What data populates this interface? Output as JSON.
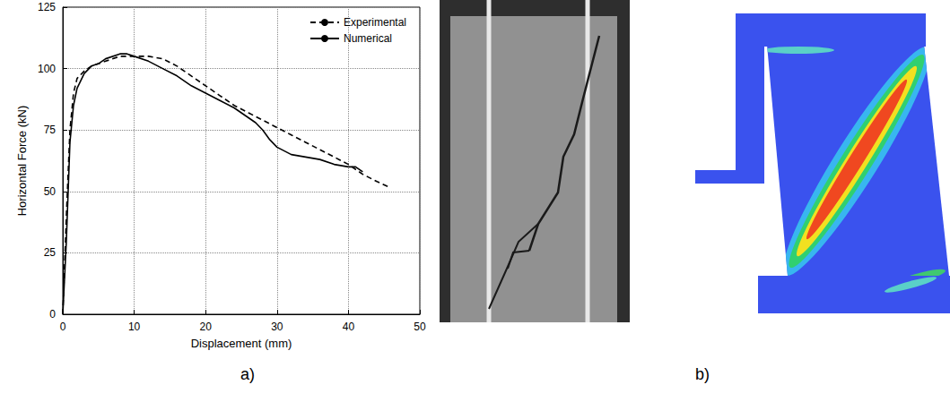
{
  "chart_data": {
    "type": "line",
    "x_label": "Displacement (mm)",
    "y_label": "Horizontal Force (kN)",
    "xlim": [
      0,
      50
    ],
    "xticks": [
      0,
      10,
      20,
      30,
      40,
      50
    ],
    "ylim": [
      0,
      125
    ],
    "yticks": [
      0,
      25,
      50,
      75,
      100,
      125
    ],
    "grid": true,
    "legend": "upper right",
    "series": [
      {
        "name": "Experimental",
        "color": "#000000",
        "line_style": "dashed",
        "x": [
          0,
          0.5,
          1,
          1.5,
          2,
          3,
          4,
          6,
          8,
          10,
          12,
          14,
          16,
          18,
          20,
          22,
          24,
          26,
          28,
          30,
          32,
          34,
          36,
          38,
          40,
          42,
          44,
          45.5
        ],
        "values": [
          0,
          40,
          75,
          90,
          96,
          99,
          101,
          103,
          105,
          105,
          105,
          104,
          101,
          97,
          93,
          89,
          85,
          82,
          79,
          76,
          73,
          70,
          67,
          64,
          61,
          57,
          54,
          52
        ]
      },
      {
        "name": "Numerical",
        "color": "#000000",
        "line_style": "solid",
        "x": [
          0,
          0.5,
          1,
          1.5,
          2,
          3,
          4,
          5,
          6,
          8,
          9,
          10,
          12,
          14,
          16,
          18,
          20,
          22,
          24,
          26,
          27,
          28,
          29,
          30,
          32,
          34,
          36,
          38,
          40,
          41,
          42
        ],
        "values": [
          0,
          30,
          70,
          85,
          92,
          98,
          101,
          102,
          104,
          106,
          106,
          105,
          103,
          100,
          97,
          93,
          90,
          87,
          84,
          80,
          78,
          75,
          71,
          68,
          65,
          64,
          63,
          61,
          60,
          60,
          58
        ]
      }
    ]
  },
  "panel_labels": [
    "a)",
    "b)"
  ]
}
